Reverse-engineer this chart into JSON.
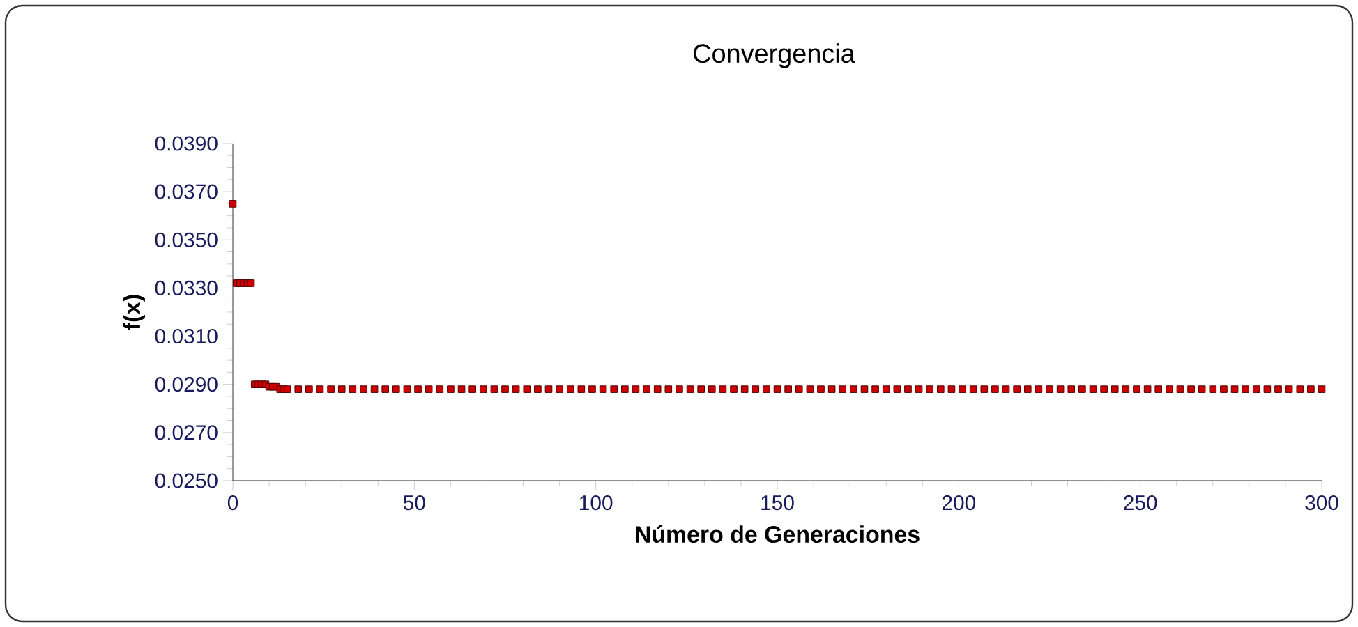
{
  "chart_data": {
    "type": "scatter",
    "title": "Convergencia",
    "xlabel": "Número de Generaciones",
    "ylabel": "f(x)",
    "xlim": [
      0,
      300
    ],
    "xticks": [
      0,
      50,
      100,
      150,
      200,
      250,
      300
    ],
    "ylim": [
      0.025,
      0.039
    ],
    "yticks": [
      {
        "value": 0.025,
        "label": "0.0250"
      },
      {
        "value": 0.027,
        "label": "0.0270"
      },
      {
        "value": 0.029,
        "label": "0.0290"
      },
      {
        "value": 0.031,
        "label": "0.0310"
      },
      {
        "value": 0.033,
        "label": "0.0330"
      },
      {
        "value": 0.035,
        "label": "0.0350"
      },
      {
        "value": 0.037,
        "label": "0.0370"
      },
      {
        "value": 0.039,
        "label": "0.0390"
      }
    ],
    "marker": "square",
    "grid": false,
    "legend": false,
    "series": [
      {
        "color": "#cc0000",
        "x": [
          0,
          1,
          2,
          3,
          4,
          5,
          6,
          7,
          8,
          9,
          10,
          11,
          12,
          13,
          14,
          15,
          18,
          21,
          24,
          27,
          30,
          33,
          36,
          39,
          42,
          45,
          48,
          51,
          54,
          57,
          60,
          63,
          66,
          69,
          72,
          75,
          78,
          81,
          84,
          87,
          90,
          93,
          96,
          99,
          102,
          105,
          108,
          111,
          114,
          117,
          120,
          123,
          126,
          129,
          132,
          135,
          138,
          141,
          144,
          147,
          150,
          153,
          156,
          159,
          162,
          165,
          168,
          171,
          174,
          177,
          180,
          183,
          186,
          189,
          192,
          195,
          198,
          201,
          204,
          207,
          210,
          213,
          216,
          219,
          222,
          225,
          228,
          231,
          234,
          237,
          240,
          243,
          246,
          249,
          252,
          255,
          258,
          261,
          264,
          267,
          270,
          273,
          276,
          279,
          282,
          285,
          288,
          291,
          294,
          297,
          300
        ],
        "values": [
          0.0365,
          0.0332,
          0.0332,
          0.0332,
          0.0332,
          0.0332,
          0.029,
          0.029,
          0.029,
          0.029,
          0.0289,
          0.0289,
          0.0289,
          0.0288,
          0.0288,
          0.0288,
          0.0288,
          0.0288,
          0.0288,
          0.0288,
          0.0288,
          0.0288,
          0.0288,
          0.0288,
          0.0288,
          0.0288,
          0.0288,
          0.0288,
          0.0288,
          0.0288,
          0.0288,
          0.0288,
          0.0288,
          0.0288,
          0.0288,
          0.0288,
          0.0288,
          0.0288,
          0.0288,
          0.0288,
          0.0288,
          0.0288,
          0.0288,
          0.0288,
          0.0288,
          0.0288,
          0.0288,
          0.0288,
          0.0288,
          0.0288,
          0.0288,
          0.0288,
          0.0288,
          0.0288,
          0.0288,
          0.0288,
          0.0288,
          0.0288,
          0.0288,
          0.0288,
          0.0288,
          0.0288,
          0.0288,
          0.0288,
          0.0288,
          0.0288,
          0.0288,
          0.0288,
          0.0288,
          0.0288,
          0.0288,
          0.0288,
          0.0288,
          0.0288,
          0.0288,
          0.0288,
          0.0288,
          0.0288,
          0.0288,
          0.0288,
          0.0288,
          0.0288,
          0.0288,
          0.0288,
          0.0288,
          0.0288,
          0.0288,
          0.0288,
          0.0288,
          0.0288,
          0.0288,
          0.0288,
          0.0288,
          0.0288,
          0.0288,
          0.0288,
          0.0288,
          0.0288,
          0.0288,
          0.0288,
          0.0288,
          0.0288,
          0.0288,
          0.0288,
          0.0288,
          0.0288,
          0.0288,
          0.0288,
          0.0288,
          0.0288,
          0.0288
        ]
      }
    ]
  }
}
